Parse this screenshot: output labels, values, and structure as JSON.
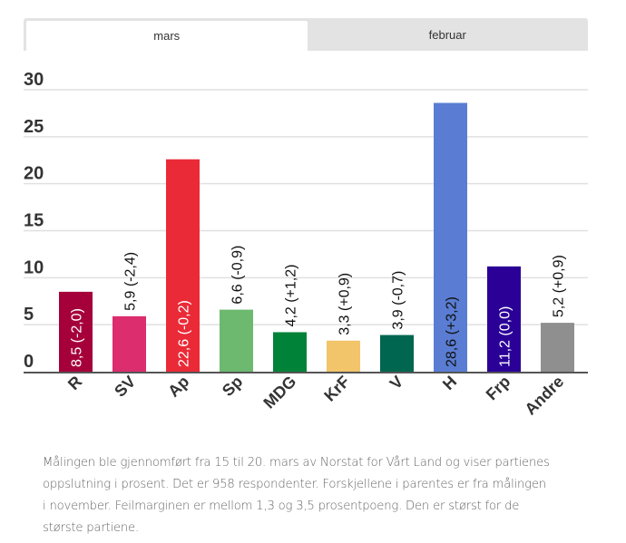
{
  "tabs": [
    {
      "label": "mars",
      "active": true
    },
    {
      "label": "februar",
      "active": false
    }
  ],
  "chart_data": {
    "type": "bar",
    "title": "",
    "xlabel": "",
    "ylabel": "",
    "ylim": [
      0,
      30
    ],
    "yticks": [
      0,
      5,
      10,
      15,
      20,
      25,
      30
    ],
    "grid": true,
    "categories": [
      "R",
      "SV",
      "Ap",
      "Sp",
      "MDG",
      "KrF",
      "V",
      "H",
      "Frp",
      "Andre"
    ],
    "values": [
      8.5,
      5.9,
      22.6,
      6.6,
      4.2,
      3.3,
      3.9,
      28.6,
      11.2,
      5.2
    ],
    "changes": [
      -2.0,
      -2.4,
      -0.2,
      -0.9,
      1.2,
      0.9,
      -0.7,
      3.2,
      0.0,
      0.9
    ],
    "data_labels": [
      "8,5 (-2,0)",
      "5,9 (-2,4)",
      "22,6 (-0,2)",
      "6,6 (-0,9)",
      "4,2 (+1,2)",
      "3,3 (+0,9)",
      "3,9 (-0,7)",
      "28,6 (+3,2)",
      "11,2 (0,0)",
      "5,2 (+0,9)"
    ],
    "label_inside": [
      true,
      false,
      true,
      false,
      false,
      false,
      false,
      true,
      true,
      false
    ],
    "label_colors": [
      "#ffffff",
      "#111111",
      "#ffffff",
      "#111111",
      "#111111",
      "#111111",
      "#111111",
      "#111111",
      "#ffffff",
      "#111111"
    ],
    "colors": [
      "#a5003a",
      "#dc2d6e",
      "#ea2a37",
      "#6cb96f",
      "#008338",
      "#f2c56a",
      "#00664f",
      "#5a7dd3",
      "#2a0097",
      "#8f8f8f"
    ]
  },
  "caption": "Målingen ble gjennomført fra 15 til 20. mars av Norstat for Vårt Land og viser partienes oppslutning i prosent. Det er 958 respondenter. Forskjellene i parentes er fra målingen i november. Feilmarginen er mellom 1,3 og 3,5 prosentpoeng. Den er størst for de største partiene."
}
